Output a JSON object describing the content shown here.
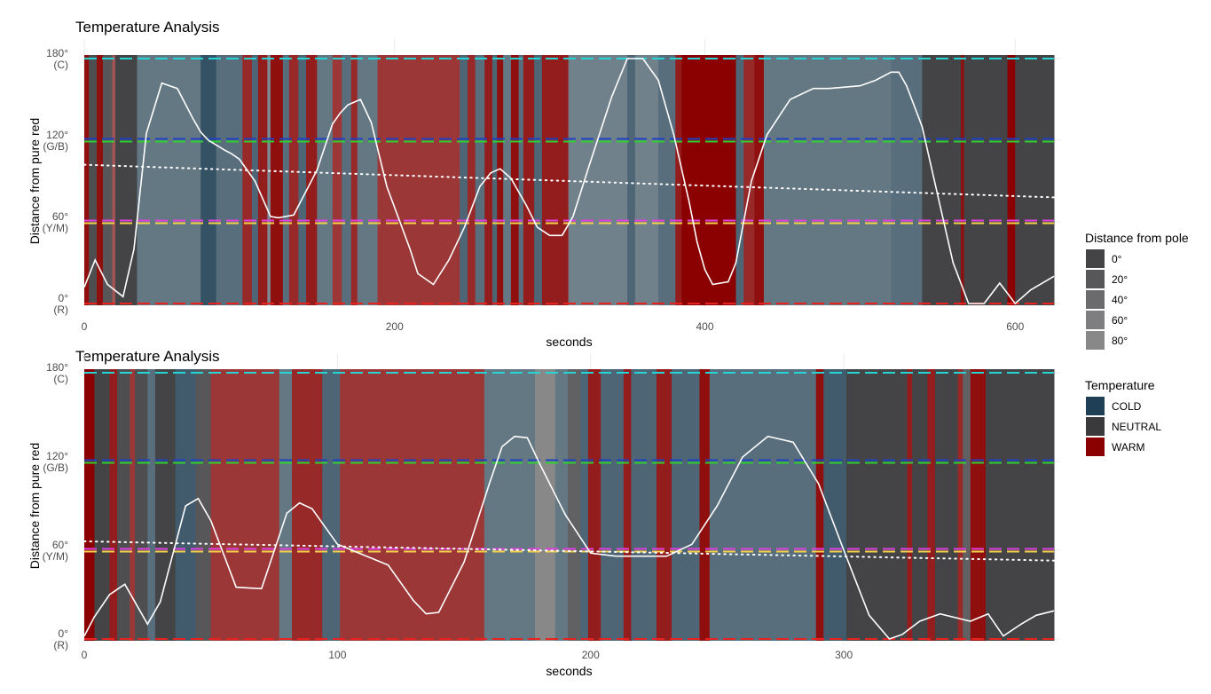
{
  "colors": {
    "COLD": "#1e3f55",
    "NEUTRAL": "#3a3a3d",
    "WARM": "#8b0000",
    "line_C": "#27d4d4",
    "line_GB_1": "#1f3fc4",
    "line_GB_2": "#2fcf2f",
    "line_YM_1": "#e040e0",
    "line_YM_2": "#f3d24a",
    "line_R": "#e8221e",
    "curve": "#ffffff"
  },
  "legends": {
    "pole": {
      "title": "Distance from pole",
      "items": [
        "0°",
        "20°",
        "40°",
        "60°",
        "80°"
      ]
    },
    "temperature": {
      "title": "Temperature",
      "items": [
        "COLD",
        "NEUTRAL",
        "WARM"
      ]
    }
  },
  "chart_data": [
    {
      "type": "line",
      "title": "Temperature Analysis",
      "xlabel": "seconds",
      "ylabel": "Distance from pure red",
      "xlim": [
        0,
        625
      ],
      "ylim": [
        0,
        180
      ],
      "xticks": [
        "0",
        "200",
        "400",
        "600"
      ],
      "xtick_values": [
        0,
        200,
        400,
        600
      ],
      "yticks": [
        {
          "value": 0,
          "label": "0°",
          "sub": "(R)"
        },
        {
          "value": 60,
          "label": "60°",
          "sub": "(Y/M)"
        },
        {
          "value": 120,
          "label": "120°",
          "sub": "(G/B)"
        },
        {
          "value": 180,
          "label": "180°",
          "sub": "(C)"
        }
      ],
      "reference_lines": [
        {
          "name": "C",
          "value": 180,
          "colors": [
            "line_C"
          ]
        },
        {
          "name": "G/B",
          "value": 120,
          "colors": [
            "line_GB_1",
            "line_GB_2"
          ]
        },
        {
          "name": "Y/M",
          "value": 60,
          "colors": [
            "line_YM_1",
            "line_YM_2"
          ]
        },
        {
          "name": "R",
          "value": 0,
          "colors": [
            "line_R"
          ]
        }
      ],
      "bands": [
        {
          "from": 0,
          "to": 3,
          "temp": "WARM",
          "pole": 10
        },
        {
          "from": 3,
          "to": 8,
          "temp": "NEUTRAL",
          "pole": 20
        },
        {
          "from": 8,
          "to": 12,
          "temp": "WARM",
          "pole": 10
        },
        {
          "from": 12,
          "to": 18,
          "temp": "NEUTRAL",
          "pole": 30
        },
        {
          "from": 18,
          "to": 20,
          "temp": "WARM",
          "pole": 60
        },
        {
          "from": 20,
          "to": 34,
          "temp": "NEUTRAL",
          "pole": 10
        },
        {
          "from": 34,
          "to": 75,
          "temp": "COLD",
          "pole": 60
        },
        {
          "from": 75,
          "to": 85,
          "temp": "COLD",
          "pole": 20
        },
        {
          "from": 85,
          "to": 102,
          "temp": "COLD",
          "pole": 50
        },
        {
          "from": 102,
          "to": 108,
          "temp": "WARM",
          "pole": 30
        },
        {
          "from": 108,
          "to": 112,
          "temp": "COLD",
          "pole": 40
        },
        {
          "from": 112,
          "to": 118,
          "temp": "WARM",
          "pole": 20
        },
        {
          "from": 118,
          "to": 120,
          "temp": "COLD",
          "pole": 80
        },
        {
          "from": 120,
          "to": 128,
          "temp": "WARM",
          "pole": 10
        },
        {
          "from": 128,
          "to": 132,
          "temp": "COLD",
          "pole": 50
        },
        {
          "from": 132,
          "to": 138,
          "temp": "WARM",
          "pole": 30
        },
        {
          "from": 138,
          "to": 143,
          "temp": "COLD",
          "pole": 40
        },
        {
          "from": 143,
          "to": 150,
          "temp": "WARM",
          "pole": 20
        },
        {
          "from": 150,
          "to": 160,
          "temp": "COLD",
          "pole": 60
        },
        {
          "from": 160,
          "to": 166,
          "temp": "WARM",
          "pole": 40
        },
        {
          "from": 166,
          "to": 172,
          "temp": "COLD",
          "pole": 50
        },
        {
          "from": 172,
          "to": 176,
          "temp": "WARM",
          "pole": 30
        },
        {
          "from": 176,
          "to": 189,
          "temp": "COLD",
          "pole": 60
        },
        {
          "from": 189,
          "to": 242,
          "temp": "WARM",
          "pole": 40
        },
        {
          "from": 242,
          "to": 247,
          "temp": "COLD",
          "pole": 40
        },
        {
          "from": 247,
          "to": 252,
          "temp": "WARM",
          "pole": 30
        },
        {
          "from": 252,
          "to": 258,
          "temp": "COLD",
          "pole": 50
        },
        {
          "from": 258,
          "to": 263,
          "temp": "WARM",
          "pole": 20
        },
        {
          "from": 263,
          "to": 266,
          "temp": "COLD",
          "pole": 40
        },
        {
          "from": 266,
          "to": 270,
          "temp": "WARM",
          "pole": 10
        },
        {
          "from": 270,
          "to": 275,
          "temp": "COLD",
          "pole": 60
        },
        {
          "from": 275,
          "to": 280,
          "temp": "WARM",
          "pole": 10
        },
        {
          "from": 280,
          "to": 283,
          "temp": "COLD",
          "pole": 50
        },
        {
          "from": 283,
          "to": 290,
          "temp": "WARM",
          "pole": 20
        },
        {
          "from": 290,
          "to": 295,
          "temp": "COLD",
          "pole": 40
        },
        {
          "from": 295,
          "to": 312,
          "temp": "WARM",
          "pole": 20
        },
        {
          "from": 312,
          "to": 350,
          "temp": "COLD",
          "pole": 70
        },
        {
          "from": 350,
          "to": 355,
          "temp": "COLD",
          "pole": 40
        },
        {
          "from": 355,
          "to": 370,
          "temp": "COLD",
          "pole": 70
        },
        {
          "from": 370,
          "to": 381,
          "temp": "COLD",
          "pole": 50
        },
        {
          "from": 381,
          "to": 385,
          "temp": "WARM",
          "pole": 20
        },
        {
          "from": 385,
          "to": 420,
          "temp": "WARM",
          "pole": 0
        },
        {
          "from": 420,
          "to": 425,
          "temp": "COLD",
          "pole": 40
        },
        {
          "from": 425,
          "to": 432,
          "temp": "WARM",
          "pole": 30
        },
        {
          "from": 432,
          "to": 438,
          "temp": "WARM",
          "pole": 10
        },
        {
          "from": 438,
          "to": 520,
          "temp": "COLD",
          "pole": 60
        },
        {
          "from": 520,
          "to": 540,
          "temp": "COLD",
          "pole": 50
        },
        {
          "from": 540,
          "to": 565,
          "temp": "NEUTRAL",
          "pole": 10
        },
        {
          "from": 565,
          "to": 567,
          "temp": "WARM",
          "pole": 10
        },
        {
          "from": 567,
          "to": 595,
          "temp": "NEUTRAL",
          "pole": 10
        },
        {
          "from": 595,
          "to": 600,
          "temp": "WARM",
          "pole": 0
        },
        {
          "from": 600,
          "to": 625,
          "temp": "NEUTRAL",
          "pole": 10
        }
      ],
      "series": [
        {
          "x": [
            0,
            7,
            15,
            25,
            32,
            40,
            50,
            60,
            70,
            75,
            80,
            90,
            95,
            100,
            110,
            120,
            125,
            135,
            150,
            160,
            165,
            170,
            178,
            185,
            195,
            210,
            215,
            225,
            235,
            245,
            255,
            262,
            268,
            275,
            285,
            292,
            300,
            308,
            315,
            325,
            340,
            350,
            360,
            370,
            380,
            390,
            395,
            400,
            405,
            415,
            420,
            425,
            430,
            440,
            455,
            470,
            480,
            490,
            500,
            510,
            520,
            525,
            530,
            540,
            550,
            560,
            570,
            580,
            590,
            600,
            610,
            625
          ],
          "y": [
            12,
            32,
            14,
            5,
            40,
            125,
            162,
            158,
            136,
            126,
            120,
            113,
            110,
            106,
            90,
            64,
            63,
            65,
            98,
            132,
            140,
            146,
            150,
            133,
            86,
            40,
            22,
            14,
            32,
            56,
            86,
            96,
            99,
            92,
            72,
            56,
            50,
            50,
            64,
            100,
            152,
            180,
            180,
            164,
            124,
            74,
            45,
            25,
            14,
            16,
            30,
            60,
            90,
            124,
            150,
            158,
            158,
            159,
            160,
            164,
            170,
            170,
            160,
            130,
            80,
            30,
            0,
            0,
            15,
            0,
            10,
            20
          ]
        },
        {
          "style": "dotted",
          "x": [
            0,
            625
          ],
          "y": [
            102,
            78
          ]
        }
      ]
    },
    {
      "type": "line",
      "title": "Temperature Analysis",
      "xlabel": "seconds",
      "ylabel": "Distance from pure red",
      "xlim": [
        0,
        383
      ],
      "ylim": [
        0,
        180
      ],
      "xticks": [
        "0",
        "100",
        "200",
        "300"
      ],
      "xtick_values": [
        0,
        100,
        200,
        300
      ],
      "yticks": [
        {
          "value": 0,
          "label": "0°",
          "sub": "(R)"
        },
        {
          "value": 60,
          "label": "60°",
          "sub": "(Y/M)"
        },
        {
          "value": 120,
          "label": "120°",
          "sub": "(G/B)"
        },
        {
          "value": 180,
          "label": "180°",
          "sub": "(C)"
        }
      ],
      "reference_lines": [
        {
          "name": "C",
          "value": 180,
          "colors": [
            "line_C"
          ]
        },
        {
          "name": "G/B",
          "value": 120,
          "colors": [
            "line_GB_1",
            "line_GB_2"
          ]
        },
        {
          "name": "Y/M",
          "value": 60,
          "colors": [
            "line_YM_1",
            "line_YM_2"
          ]
        },
        {
          "name": "R",
          "value": 0,
          "colors": [
            "line_R"
          ]
        }
      ],
      "bands": [
        {
          "from": 0,
          "to": 4,
          "temp": "WARM",
          "pole": 0
        },
        {
          "from": 4,
          "to": 10,
          "temp": "NEUTRAL",
          "pole": 10
        },
        {
          "from": 10,
          "to": 13,
          "temp": "WARM",
          "pole": 20
        },
        {
          "from": 13,
          "to": 18,
          "temp": "NEUTRAL",
          "pole": 20
        },
        {
          "from": 18,
          "to": 20,
          "temp": "WARM",
          "pole": 40
        },
        {
          "from": 20,
          "to": 25,
          "temp": "NEUTRAL",
          "pole": 20
        },
        {
          "from": 25,
          "to": 28,
          "temp": "COLD",
          "pole": 50
        },
        {
          "from": 28,
          "to": 36,
          "temp": "NEUTRAL",
          "pole": 10
        },
        {
          "from": 36,
          "to": 44,
          "temp": "COLD",
          "pole": 30
        },
        {
          "from": 44,
          "to": 50,
          "temp": "NEUTRAL",
          "pole": 30
        },
        {
          "from": 50,
          "to": 77,
          "temp": "WARM",
          "pole": 40
        },
        {
          "from": 77,
          "to": 82,
          "temp": "COLD",
          "pole": 60
        },
        {
          "from": 82,
          "to": 94,
          "temp": "WARM",
          "pole": 30
        },
        {
          "from": 94,
          "to": 101,
          "temp": "COLD",
          "pole": 40
        },
        {
          "from": 101,
          "to": 158,
          "temp": "WARM",
          "pole": 40
        },
        {
          "from": 158,
          "to": 178,
          "temp": "COLD",
          "pole": 60
        },
        {
          "from": 178,
          "to": 186,
          "temp": "NEUTRAL",
          "pole": 80
        },
        {
          "from": 186,
          "to": 191,
          "temp": "COLD",
          "pole": 60
        },
        {
          "from": 191,
          "to": 196,
          "temp": "NEUTRAL",
          "pole": 40
        },
        {
          "from": 196,
          "to": 199,
          "temp": "COLD",
          "pole": 40
        },
        {
          "from": 199,
          "to": 204,
          "temp": "WARM",
          "pole": 20
        },
        {
          "from": 204,
          "to": 213,
          "temp": "COLD",
          "pole": 40
        },
        {
          "from": 213,
          "to": 216,
          "temp": "WARM",
          "pole": 20
        },
        {
          "from": 216,
          "to": 226,
          "temp": "COLD",
          "pole": 40
        },
        {
          "from": 226,
          "to": 232,
          "temp": "WARM",
          "pole": 20
        },
        {
          "from": 232,
          "to": 243,
          "temp": "COLD",
          "pole": 40
        },
        {
          "from": 243,
          "to": 247,
          "temp": "WARM",
          "pole": 10
        },
        {
          "from": 247,
          "to": 289,
          "temp": "COLD",
          "pole": 50
        },
        {
          "from": 289,
          "to": 292,
          "temp": "WARM",
          "pole": 10
        },
        {
          "from": 292,
          "to": 301,
          "temp": "COLD",
          "pole": 30
        },
        {
          "from": 301,
          "to": 325,
          "temp": "NEUTRAL",
          "pole": 10
        },
        {
          "from": 325,
          "to": 327,
          "temp": "WARM",
          "pole": 20
        },
        {
          "from": 327,
          "to": 333,
          "temp": "NEUTRAL",
          "pole": 10
        },
        {
          "from": 333,
          "to": 336,
          "temp": "WARM",
          "pole": 20
        },
        {
          "from": 336,
          "to": 345,
          "temp": "NEUTRAL",
          "pole": 10
        },
        {
          "from": 345,
          "to": 347,
          "temp": "WARM",
          "pole": 30
        },
        {
          "from": 347,
          "to": 350,
          "temp": "NEUTRAL",
          "pole": 40
        },
        {
          "from": 350,
          "to": 356,
          "temp": "WARM",
          "pole": 10
        },
        {
          "from": 356,
          "to": 383,
          "temp": "NEUTRAL",
          "pole": 10
        }
      ],
      "series": [
        {
          "x": [
            0,
            4,
            10,
            16,
            20,
            25,
            30,
            40,
            45,
            50,
            60,
            70,
            80,
            85,
            90,
            100,
            110,
            120,
            130,
            135,
            140,
            150,
            160,
            165,
            170,
            175,
            180,
            190,
            200,
            210,
            220,
            230,
            240,
            250,
            260,
            270,
            280,
            290,
            300,
            310,
            318,
            323,
            330,
            338,
            350,
            357,
            363,
            370,
            376,
            383
          ],
          "y": [
            2,
            15,
            30,
            37,
            25,
            10,
            25,
            90,
            95,
            80,
            35,
            34,
            85,
            92,
            88,
            64,
            57,
            50,
            26,
            17,
            18,
            52,
            105,
            130,
            137,
            136,
            118,
            84,
            58,
            56,
            56,
            56,
            64,
            90,
            123,
            137,
            133,
            105,
            60,
            16,
            0,
            3,
            12,
            17,
            12,
            17,
            2,
            10,
            16,
            19
          ]
        },
        {
          "style": "dotted",
          "x": [
            0,
            383
          ],
          "y": [
            66,
            53
          ]
        }
      ]
    }
  ]
}
